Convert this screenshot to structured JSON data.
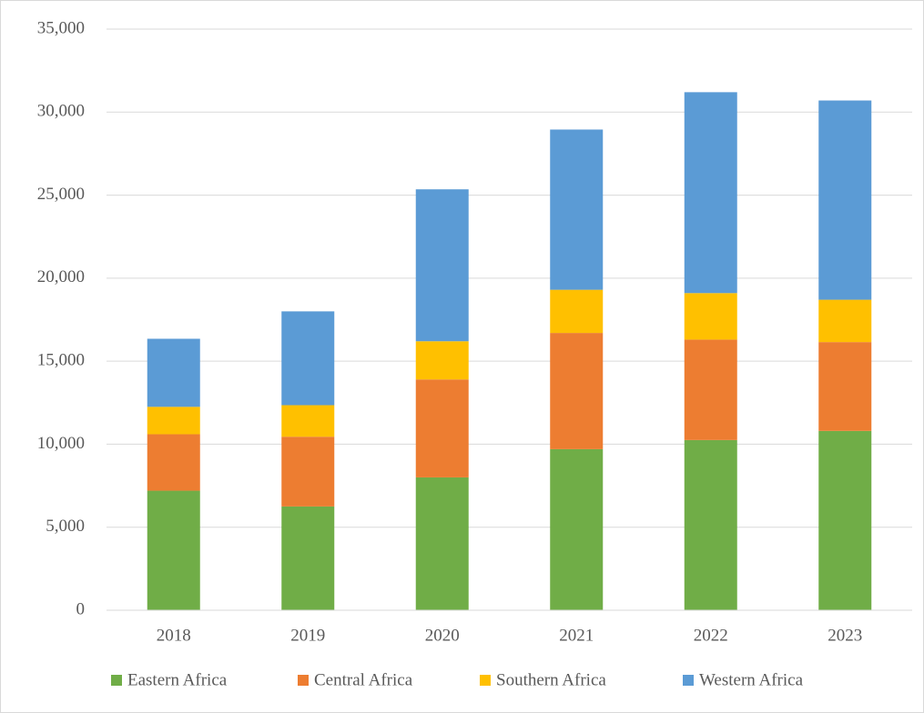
{
  "chart_data": {
    "type": "stacked_bar",
    "categories": [
      "2018",
      "2019",
      "2020",
      "2021",
      "2022",
      "2023"
    ],
    "series": [
      {
        "name": "Eastern Africa",
        "color": "#70ad47",
        "values": [
          7200,
          6250,
          8000,
          9700,
          10250,
          10800
        ]
      },
      {
        "name": "Central Africa",
        "color": "#ed7d31",
        "values": [
          3400,
          4200,
          5900,
          7000,
          6050,
          5350
        ]
      },
      {
        "name": "Southern Africa",
        "color": "#ffc000",
        "values": [
          1650,
          1900,
          2300,
          2600,
          2800,
          2550
        ]
      },
      {
        "name": "Western Africa",
        "color": "#5b9bd5",
        "values": [
          4100,
          5650,
          9150,
          9650,
          12100,
          12000
        ]
      }
    ],
    "ylim": [
      0,
      35000
    ],
    "yticks": [
      0,
      {
        "value": 5000,
        "label": "5,000"
      },
      {
        "value": 10000,
        "label": "10,000"
      },
      {
        "value": 15000,
        "label": "15,000"
      },
      {
        "value": 20000,
        "label": "20,000"
      },
      {
        "value": 25000,
        "label": "25,000"
      },
      {
        "value": 30000,
        "label": "30,000"
      },
      {
        "value": 35000,
        "label": "35,000"
      }
    ],
    "grid": true,
    "legend": "bottom"
  }
}
